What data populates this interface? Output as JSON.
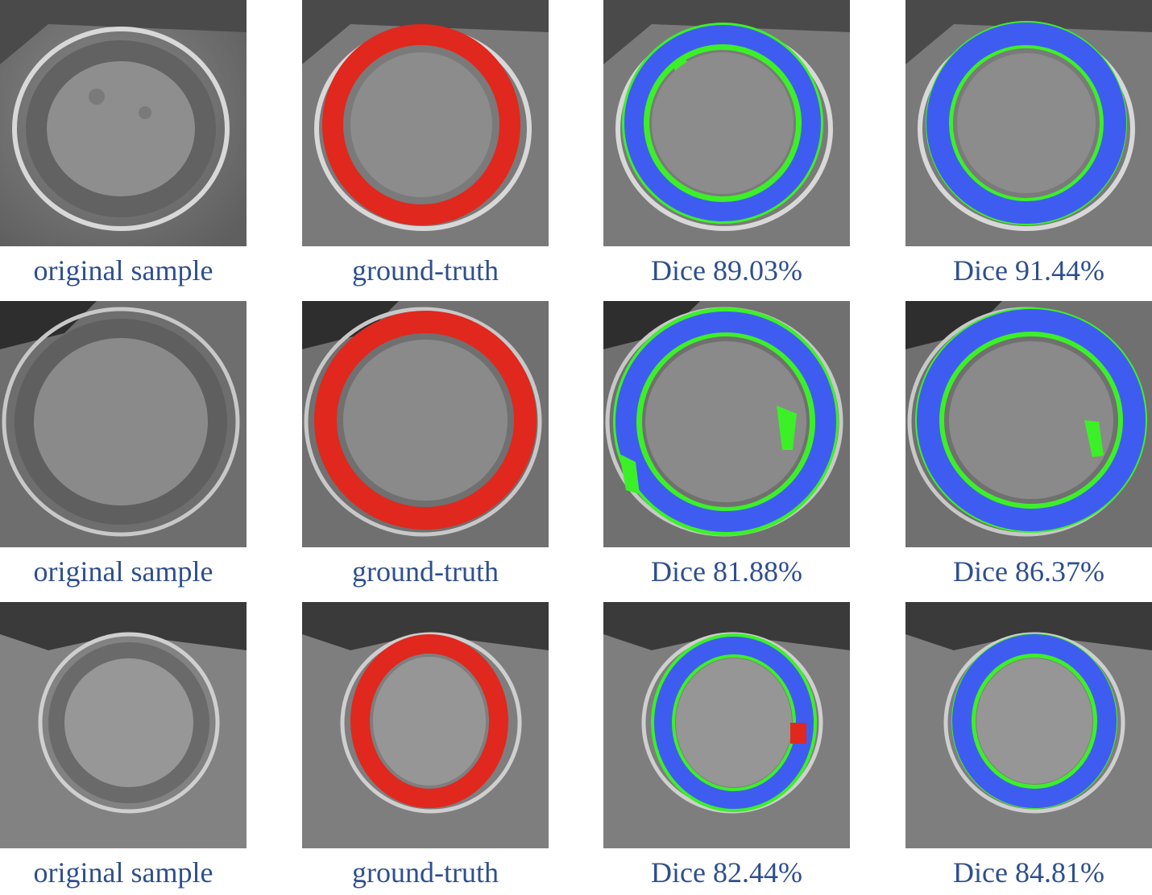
{
  "figure": {
    "rows": [
      {
        "panels": [
          {
            "type": "original",
            "caption": "original sample"
          },
          {
            "type": "ground-truth",
            "caption": "ground-truth"
          },
          {
            "type": "prediction",
            "caption": "Dice 89.03%",
            "dice_percent": 89.03
          },
          {
            "type": "prediction",
            "caption": "Dice 91.44%",
            "dice_percent": 91.44
          }
        ]
      },
      {
        "panels": [
          {
            "type": "original",
            "caption": "original sample"
          },
          {
            "type": "ground-truth",
            "caption": "ground-truth"
          },
          {
            "type": "prediction",
            "caption": "Dice 81.88%",
            "dice_percent": 81.88
          },
          {
            "type": "prediction",
            "caption": "Dice 86.37%",
            "dice_percent": 86.37
          }
        ]
      },
      {
        "panels": [
          {
            "type": "original",
            "caption": "original sample"
          },
          {
            "type": "ground-truth",
            "caption": "ground-truth"
          },
          {
            "type": "prediction",
            "caption": "Dice 82.44%",
            "dice_percent": 82.44
          },
          {
            "type": "prediction",
            "caption": "Dice 84.81%",
            "dice_percent": 84.81
          }
        ]
      }
    ],
    "colors": {
      "ground_truth": "#e0281e",
      "overlap": "#3f5cf0",
      "prediction_only": "#3cf028",
      "caption_text": "#2e4f8f"
    }
  }
}
